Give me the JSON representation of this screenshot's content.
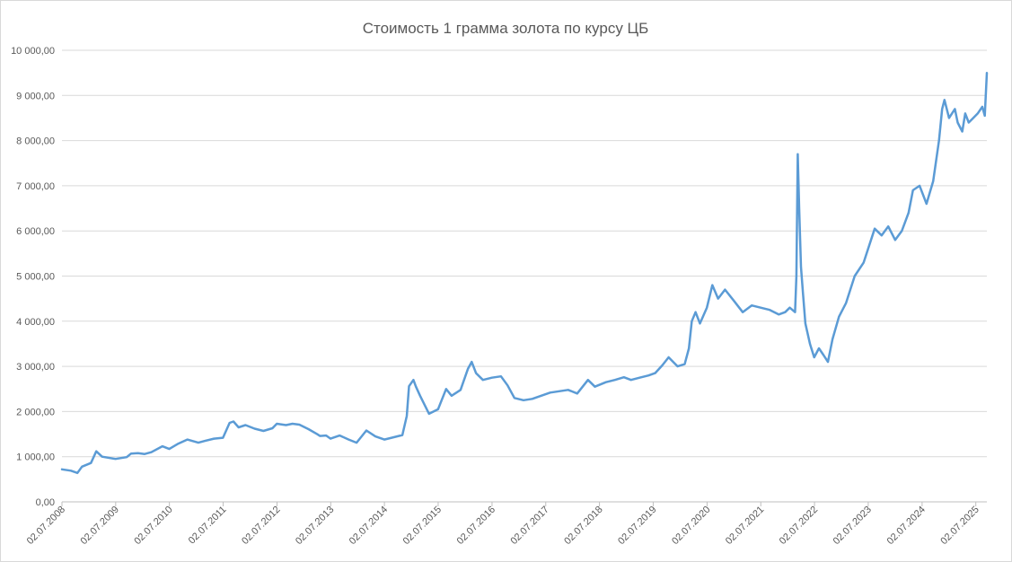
{
  "chart_data": {
    "type": "line",
    "title": "Стоимость 1 грамма золота по курсу ЦБ",
    "xlabel": "",
    "ylabel": "",
    "ylim": [
      0,
      10000
    ],
    "grid": "horizontal",
    "legend": "none",
    "line_color": "#5b9bd5",
    "y_ticks": [
      "0,00",
      "1 000,00",
      "2 000,00",
      "3 000,00",
      "4 000,00",
      "5 000,00",
      "6 000,00",
      "7 000,00",
      "8 000,00",
      "9 000,00",
      "10 000,00"
    ],
    "x_ticks": [
      "02.07.2008",
      "02.07.2009",
      "02.07.2010",
      "02.07.2011",
      "02.07.2012",
      "02.07.2013",
      "02.07.2014",
      "02.07.2015",
      "02.07.2016",
      "02.07.2017",
      "02.07.2018",
      "02.07.2019",
      "02.07.2020",
      "02.07.2021",
      "02.07.2022",
      "02.07.2023",
      "02.07.2024",
      "02.07.2025"
    ],
    "x_range": [
      "2008-07-02",
      "2025-09-15"
    ],
    "series": [
      {
        "x": [
          "2008-07-02",
          "2008-09-01",
          "2008-10-15",
          "2008-11-15",
          "2009-01-15",
          "2009-02-20",
          "2009-04-01",
          "2009-07-01",
          "2009-09-15",
          "2009-10-15",
          "2009-12-01",
          "2010-01-15",
          "2010-03-01",
          "2010-05-15",
          "2010-07-01",
          "2010-09-01",
          "2010-11-01",
          "2011-01-15",
          "2011-03-01",
          "2011-05-01",
          "2011-07-01",
          "2011-08-15",
          "2011-09-10",
          "2011-10-15",
          "2011-12-01",
          "2012-02-01",
          "2012-04-01",
          "2012-06-01",
          "2012-07-01",
          "2012-09-01",
          "2012-10-15",
          "2012-12-01",
          "2013-02-01",
          "2013-04-01",
          "2013-04-20",
          "2013-06-01",
          "2013-07-01",
          "2013-09-01",
          "2013-11-01",
          "2013-12-25",
          "2014-03-01",
          "2014-05-01",
          "2014-07-01",
          "2014-09-01",
          "2014-11-01",
          "2014-12-01",
          "2014-12-16",
          "2015-01-15",
          "2015-02-01",
          "2015-03-01",
          "2015-05-01",
          "2015-07-01",
          "2015-08-25",
          "2015-10-01",
          "2015-12-01",
          "2016-01-21",
          "2016-02-15",
          "2016-03-15",
          "2016-05-01",
          "2016-07-01",
          "2016-09-01",
          "2016-10-15",
          "2016-12-01",
          "2017-02-01",
          "2017-04-01",
          "2017-06-01",
          "2017-08-01",
          "2017-10-01",
          "2017-12-01",
          "2018-02-01",
          "2018-04-15",
          "2018-06-01",
          "2018-08-15",
          "2018-10-15",
          "2018-12-15",
          "2019-02-01",
          "2019-04-01",
          "2019-06-01",
          "2019-07-15",
          "2019-09-01",
          "2019-10-15",
          "2019-12-15",
          "2020-02-01",
          "2020-03-01",
          "2020-03-20",
          "2020-04-15",
          "2020-05-15",
          "2020-07-01",
          "2020-08-07",
          "2020-09-15",
          "2020-11-01",
          "2021-01-01",
          "2021-03-01",
          "2021-05-01",
          "2021-07-01",
          "2021-09-01",
          "2021-11-01",
          "2021-12-15",
          "2022-01-15",
          "2022-02-20",
          "2022-03-01",
          "2022-03-10",
          "2022-03-20",
          "2022-04-01",
          "2022-04-15",
          "2022-05-01",
          "2022-06-01",
          "2022-06-30",
          "2022-08-01",
          "2022-09-01",
          "2022-10-01",
          "2022-11-01",
          "2022-12-15",
          "2023-02-01",
          "2023-04-01",
          "2023-06-01",
          "2023-08-15",
          "2023-10-01",
          "2023-11-15",
          "2024-01-01",
          "2024-02-15",
          "2024-04-01",
          "2024-05-01",
          "2024-06-15",
          "2024-08-01",
          "2024-09-15",
          "2024-10-25",
          "2024-11-15",
          "2024-12-01",
          "2025-01-01",
          "2025-02-10",
          "2025-03-01",
          "2025-04-01",
          "2025-04-21",
          "2025-05-15",
          "2025-06-15",
          "2025-07-15",
          "2025-08-15",
          "2025-09-01",
          "2025-09-15"
        ],
        "y": [
          720,
          690,
          640,
          780,
          860,
          1120,
          1000,
          950,
          990,
          1070,
          1080,
          1060,
          1100,
          1230,
          1170,
          1290,
          1380,
          1310,
          1350,
          1400,
          1420,
          1750,
          1780,
          1650,
          1700,
          1620,
          1570,
          1630,
          1730,
          1700,
          1730,
          1710,
          1610,
          1500,
          1460,
          1470,
          1400,
          1470,
          1380,
          1310,
          1580,
          1450,
          1380,
          1430,
          1480,
          1900,
          2560,
          2700,
          2550,
          2350,
          1950,
          2050,
          2500,
          2350,
          2480,
          2950,
          3100,
          2850,
          2700,
          2750,
          2780,
          2580,
          2300,
          2250,
          2280,
          2350,
          2420,
          2450,
          2480,
          2400,
          2700,
          2550,
          2650,
          2700,
          2760,
          2700,
          2750,
          2800,
          2850,
          3020,
          3200,
          3000,
          3050,
          3400,
          4000,
          4200,
          3950,
          4300,
          4800,
          4500,
          4700,
          4450,
          4200,
          4350,
          4300,
          4250,
          4150,
          4200,
          4300,
          4200,
          5000,
          7700,
          6500,
          5200,
          4600,
          3950,
          3500,
          3200,
          3400,
          3250,
          3100,
          3600,
          4100,
          4400,
          5000,
          5300,
          6050,
          5900,
          6100,
          5800,
          6000,
          6400,
          6900,
          7000,
          6600,
          7100,
          8000,
          8700,
          8900,
          8500,
          8700,
          8400,
          8200,
          8600,
          8400,
          8500,
          8600,
          8750,
          8550,
          9500
        ]
      }
    ]
  }
}
